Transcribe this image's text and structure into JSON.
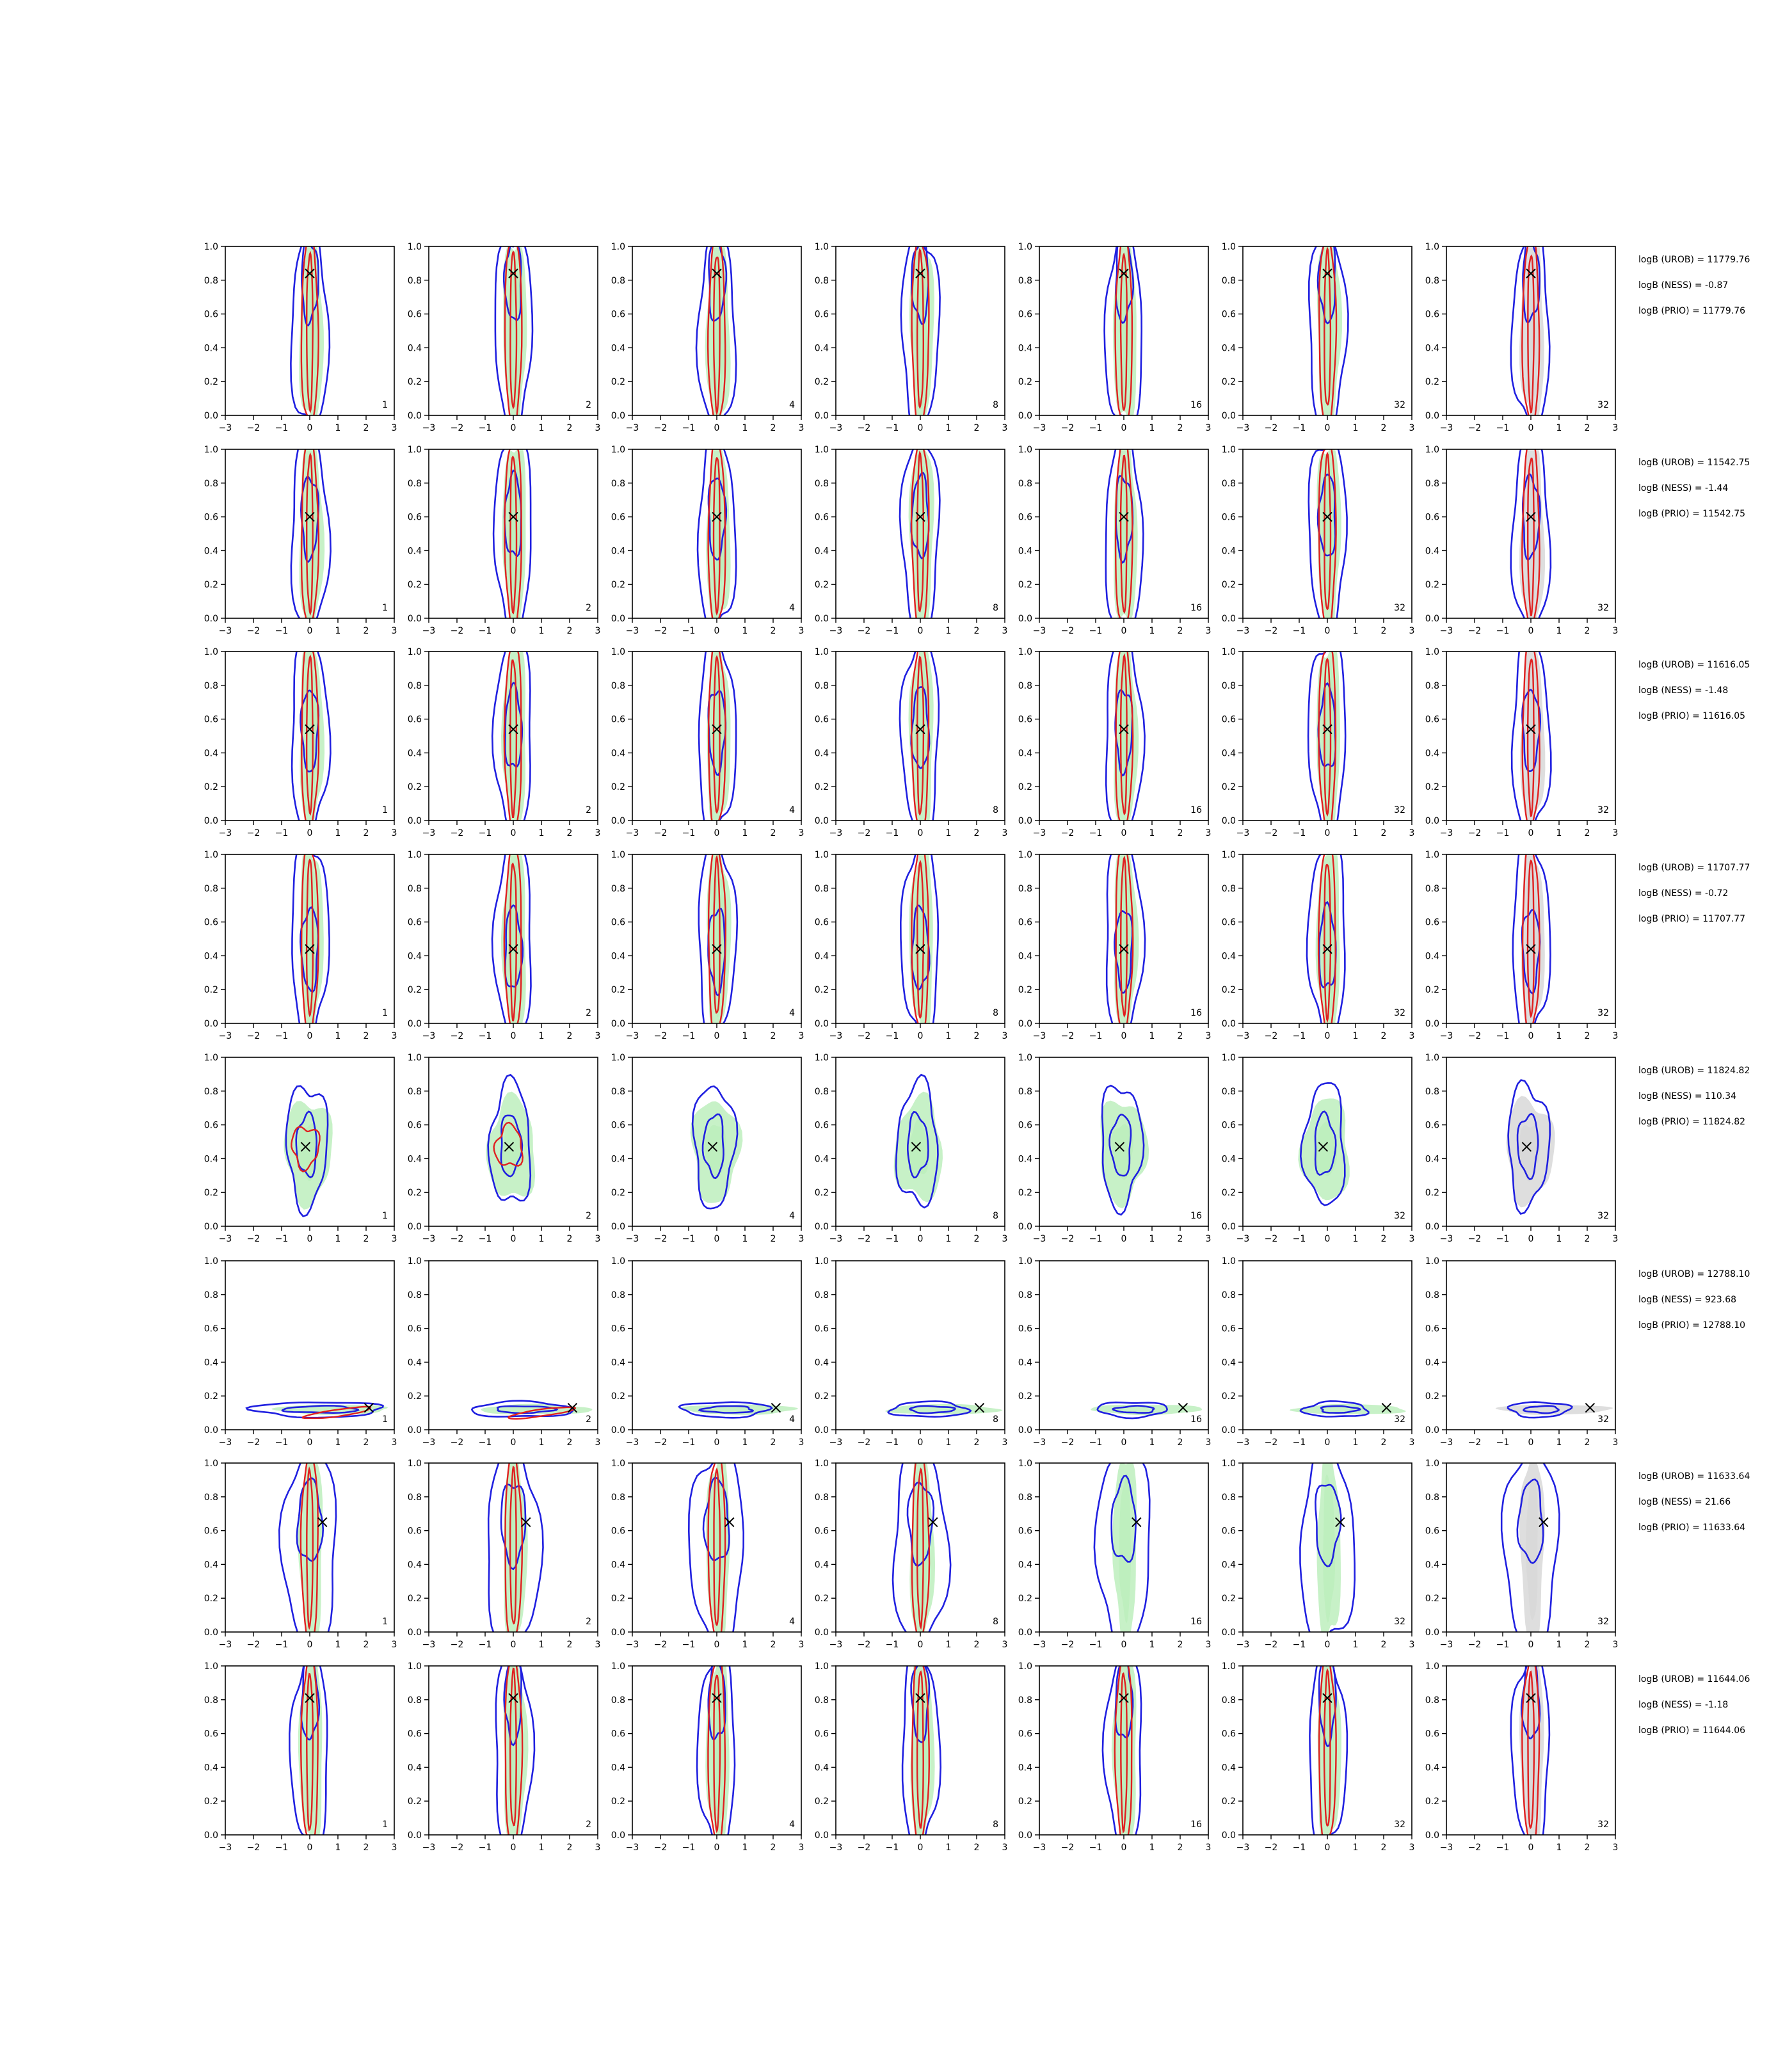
{
  "colors": {
    "background": "#ffffff",
    "frame": "#000000",
    "rob": "#2020e0",
    "ness": "#e02020",
    "prio_fill": "#bdeebd",
    "prio_fill_gray": "#d8d8d8",
    "truth_marker": "#000000"
  },
  "chart_data": {
    "type": "contour-grid",
    "xlim": [
      -3,
      3
    ],
    "ylim": [
      0,
      1
    ],
    "xticks": [
      "−3",
      "−2",
      "−1",
      "0",
      "1",
      "2",
      "3"
    ],
    "yticks": [
      "0.0",
      "0.2",
      "0.4",
      "0.6",
      "0.8",
      "1.0"
    ],
    "columns": [
      {
        "corner_label": "1",
        "prior": "green"
      },
      {
        "corner_label": "2",
        "prior": "green"
      },
      {
        "corner_label": "4",
        "prior": "green"
      },
      {
        "corner_label": "8",
        "prior": "green"
      },
      {
        "corner_label": "16",
        "prior": "green"
      },
      {
        "corner_label": "32",
        "prior": "green"
      },
      {
        "corner_label": "32",
        "prior": "gray"
      }
    ],
    "rows": [
      {
        "truth": [
          0,
          0.84
        ],
        "rob_shape": "vertical",
        "annotations": [
          "logB (UROB) = 11779.76",
          "logB (NESS) = -0.87",
          "logB (PRIO) = 11779.76"
        ]
      },
      {
        "truth": [
          0,
          0.6
        ],
        "rob_shape": "vertical",
        "annotations": [
          "logB (UROB) = 11542.75",
          "logB (NESS) = -1.44",
          "logB (PRIO) = 11542.75"
        ]
      },
      {
        "truth": [
          0,
          0.54
        ],
        "rob_shape": "vertical",
        "annotations": [
          "logB (UROB) = 11616.05",
          "logB (NESS) = -1.48",
          "logB (PRIO) = 11616.05"
        ]
      },
      {
        "truth": [
          0,
          0.44
        ],
        "rob_shape": "vertical",
        "annotations": [
          "logB (UROB) = 11707.77",
          "logB (NESS) = -0.72",
          "logB (PRIO) = 11707.77"
        ]
      },
      {
        "truth": [
          -0.15,
          0.47
        ],
        "rob_shape": "compact",
        "annotations": [
          "logB (UROB) = 11824.82",
          "logB (NESS) = 110.34",
          "logB (PRIO) = 11824.82"
        ]
      },
      {
        "truth": [
          2.1,
          0.13
        ],
        "rob_shape": "flat",
        "annotations": [
          "logB (UROB) = 12788.10",
          "logB (NESS) = 923.68",
          "logB (PRIO) = 12788.10"
        ]
      },
      {
        "truth": [
          0.45,
          0.65
        ],
        "rob_shape": "vertical-wide",
        "annotations": [
          "logB (UROB) = 11633.64",
          "logB (NESS) = 21.66",
          "logB (PRIO) = 11633.64"
        ]
      },
      {
        "truth": [
          0,
          0.81
        ],
        "rob_shape": "vertical",
        "annotations": [
          "logB (UROB) = 11644.06",
          "logB (NESS) = -1.18",
          "logB (PRIO) = 11644.06"
        ]
      }
    ]
  }
}
